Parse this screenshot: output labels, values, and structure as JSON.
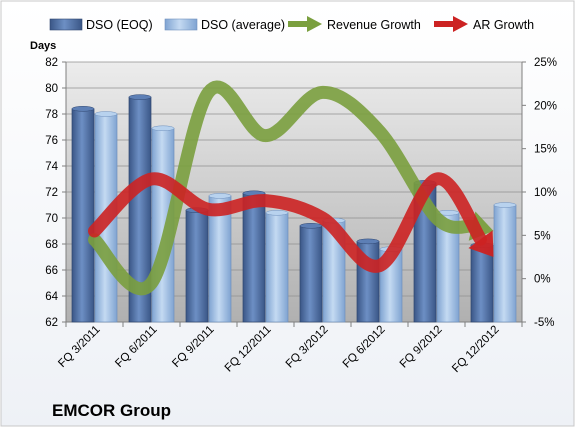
{
  "chart_data": {
    "type": "bar",
    "categories": [
      "FQ 3/2011",
      "FQ 6/2011",
      "FQ 9/2011",
      "FQ 12/2011",
      "FQ 3/2012",
      "FQ 6/2012",
      "FQ 9/2012",
      "FQ 12/2012"
    ],
    "ylabel": "Days",
    "ylim": [
      62,
      82
    ],
    "yticks": [
      62,
      64,
      66,
      68,
      70,
      72,
      74,
      76,
      78,
      80,
      82
    ],
    "y2lim": [
      -5,
      25
    ],
    "y2ticks": [
      "-5%",
      "0%",
      "5%",
      "10%",
      "15%",
      "20%",
      "25%"
    ],
    "y2tick_values": [
      -5,
      0,
      5,
      10,
      15,
      20,
      25
    ],
    "series": [
      {
        "name": "DSO (EOQ)",
        "kind": "bar",
        "axis": "left",
        "values": [
          78.4,
          79.3,
          70.6,
          71.9,
          69.4,
          68.2,
          72.7,
          67.9
        ]
      },
      {
        "name": "DSO (average)",
        "kind": "bar",
        "axis": "left",
        "values": [
          78.0,
          76.9,
          71.7,
          70.4,
          69.8,
          67.6,
          70.4,
          71.0
        ]
      },
      {
        "name": "Revenue Growth",
        "kind": "line",
        "axis": "right",
        "values": [
          4.5,
          -0.5,
          21.5,
          16.5,
          21.5,
          17.0,
          7.0,
          5.5
        ]
      },
      {
        "name": "AR Growth",
        "kind": "line",
        "axis": "right",
        "values": [
          5.5,
          11.5,
          8.0,
          9.0,
          7.0,
          1.5,
          11.5,
          2.5
        ]
      }
    ],
    "company": "EMCOR Group",
    "grid": true,
    "legend_position": "top",
    "colors": {
      "bar_eoq": "#4f6fa3",
      "bar_avg": "#9bbbe0",
      "revenue": "#7a9f3e",
      "ar": "#cc2222",
      "plot_bg": "#b0b0b0"
    }
  }
}
